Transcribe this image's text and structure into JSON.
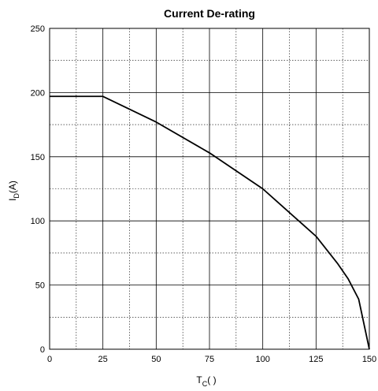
{
  "chart_data": {
    "type": "line",
    "title": "Current De-rating",
    "xlabel": {
      "main": "T",
      "sub": "C",
      "suffix": "(   )"
    },
    "ylabel": {
      "main": "I",
      "sub": "D",
      "suffix": "(A)"
    },
    "xlim": [
      0,
      150
    ],
    "ylim": [
      0,
      250
    ],
    "x_ticks": [
      0,
      25,
      50,
      75,
      100,
      125,
      150
    ],
    "y_ticks": [
      0,
      50,
      100,
      150,
      200,
      250
    ],
    "x_tick_labels": [
      "0",
      "25",
      "50",
      "75",
      "100",
      "125",
      "150"
    ],
    "y_tick_labels": [
      "0",
      "50",
      "100",
      "150",
      "200",
      "250"
    ],
    "grid": true,
    "series": [
      {
        "x": [
          0,
          25,
          50,
          75,
          100,
          125,
          135,
          140,
          145,
          150
        ],
        "y": [
          197,
          197,
          177,
          153,
          125,
          88,
          67,
          55,
          39,
          0
        ]
      }
    ],
    "colors": {
      "line": "#000000",
      "grid": "#000000",
      "axes": "#000000"
    }
  }
}
